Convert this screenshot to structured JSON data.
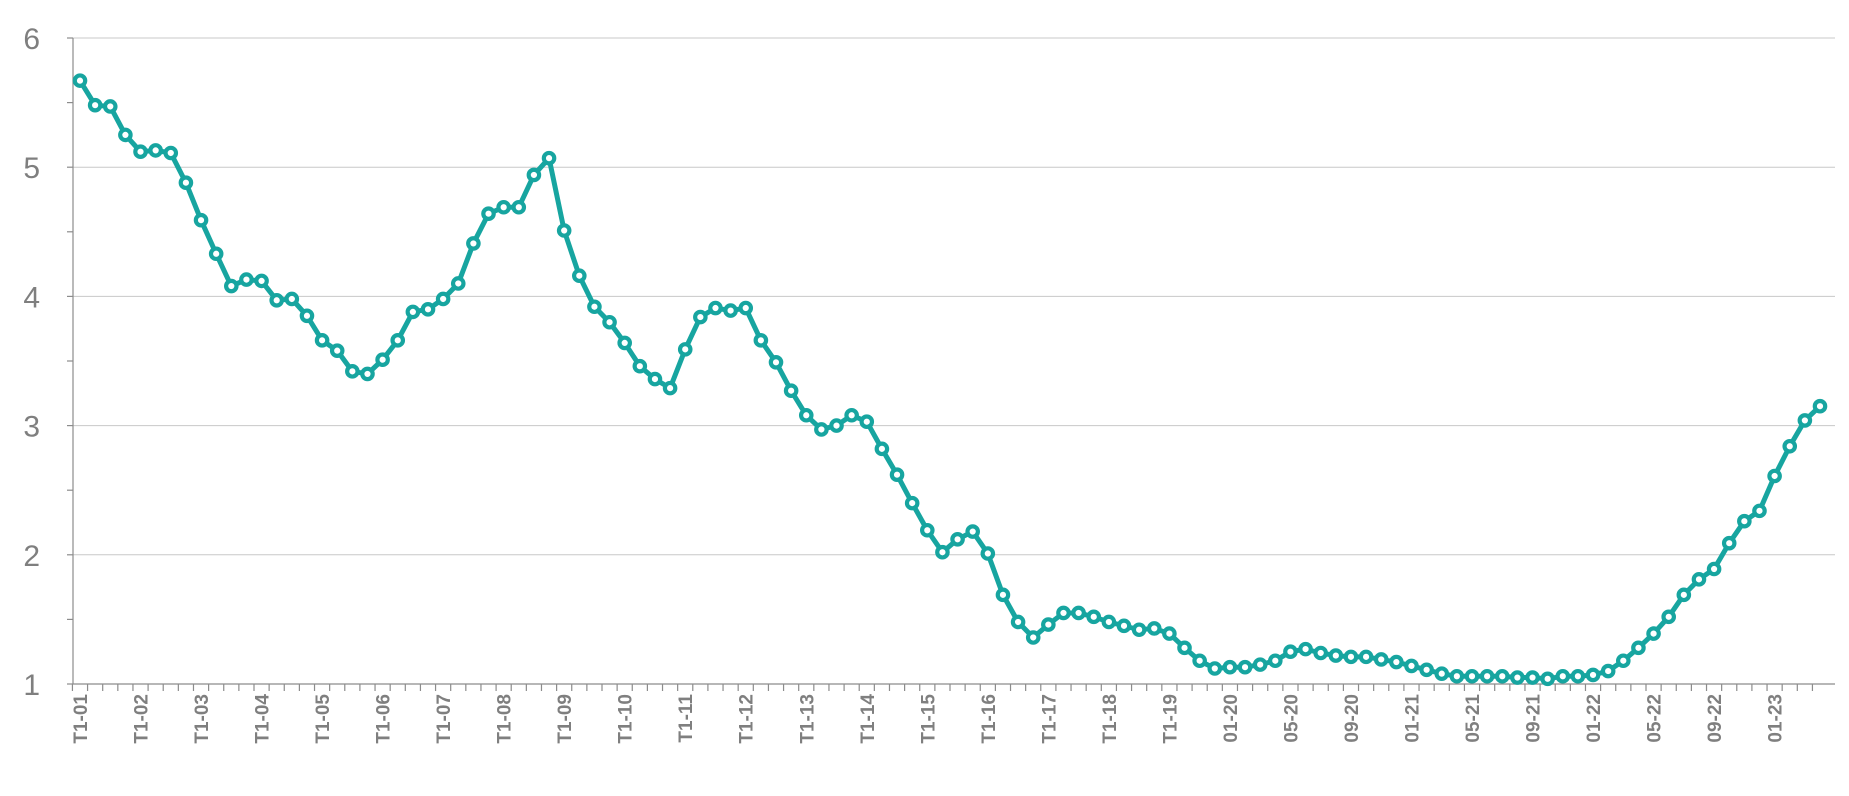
{
  "chart_data": {
    "type": "line",
    "title": "",
    "xlabel": "",
    "ylabel": "",
    "ylim": [
      1,
      6
    ],
    "y_ticks": [
      1,
      2,
      3,
      4,
      5,
      6
    ],
    "grid": "horizontal",
    "legend": "none",
    "x_tick_labels": [
      "T1-01",
      "T1-02",
      "T1-03",
      "T1-04",
      "T1-05",
      "T1-06",
      "T1-07",
      "T1-08",
      "T1-09",
      "T1-10",
      "T1-11",
      "T1-12",
      "T1-13",
      "T1-14",
      "T1-15",
      "T1-16",
      "T1-17",
      "T1-18",
      "T1-19",
      "01-20",
      "05-20",
      "09-20",
      "01-21",
      "05-21",
      "09-21",
      "01-22",
      "05-22",
      "09-22",
      "01-23"
    ],
    "x_tick_label_positions": [
      0,
      4,
      8,
      12,
      16,
      20,
      24,
      28,
      32,
      36,
      40,
      44,
      48,
      52,
      56,
      60,
      64,
      68,
      72,
      76,
      80,
      84,
      88,
      92,
      96,
      100,
      104,
      108,
      112
    ],
    "colors": {
      "series": "#17a5a0",
      "grid": "#c8c8c8",
      "axis": "#8c8c8c",
      "text": "#7f7f7f"
    },
    "series": [
      {
        "values": [
          5.67,
          5.48,
          5.47,
          5.25,
          5.12,
          5.13,
          5.11,
          4.88,
          4.59,
          4.33,
          4.08,
          4.13,
          4.12,
          3.97,
          3.98,
          3.85,
          3.66,
          3.58,
          3.42,
          3.4,
          3.51,
          3.66,
          3.88,
          3.9,
          3.98,
          4.1,
          4.41,
          4.64,
          4.69,
          4.69,
          4.94,
          5.07,
          4.51,
          4.16,
          3.92,
          3.8,
          3.64,
          3.46,
          3.36,
          3.29,
          3.59,
          3.84,
          3.91,
          3.89,
          3.91,
          3.66,
          3.49,
          3.27,
          3.08,
          2.97,
          3.0,
          3.08,
          3.03,
          2.82,
          2.62,
          2.4,
          2.19,
          2.02,
          2.12,
          2.18,
          2.01,
          1.69,
          1.48,
          1.36,
          1.46,
          1.55,
          1.55,
          1.52,
          1.48,
          1.45,
          1.42,
          1.43,
          1.39,
          1.28,
          1.18,
          1.12,
          1.13,
          1.13,
          1.15,
          1.18,
          1.25,
          1.27,
          1.24,
          1.22,
          1.21,
          1.21,
          1.19,
          1.17,
          1.14,
          1.11,
          1.08,
          1.06,
          1.06,
          1.06,
          1.06,
          1.05,
          1.05,
          1.04,
          1.06,
          1.06,
          1.07,
          1.1,
          1.18,
          1.28,
          1.39,
          1.52,
          1.69,
          1.81,
          1.89,
          2.09,
          2.26,
          2.34,
          2.61,
          2.84,
          3.04,
          3.15
        ]
      }
    ]
  }
}
